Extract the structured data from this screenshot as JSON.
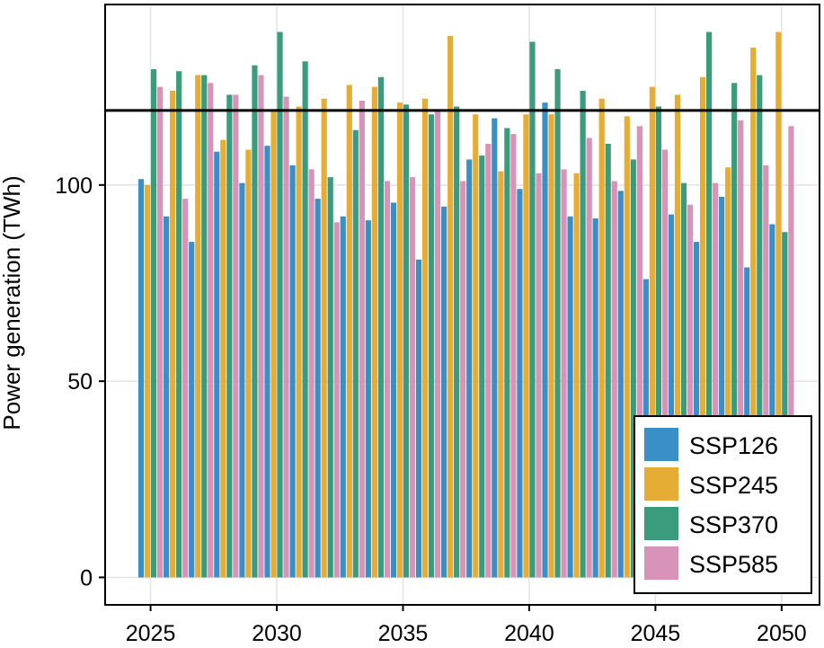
{
  "chart_data": {
    "type": "bar",
    "ylabel": "Power generation (TWh)",
    "x": [
      2025,
      2026,
      2027,
      2028,
      2029,
      2030,
      2031,
      2032,
      2033,
      2034,
      2035,
      2036,
      2037,
      2038,
      2039,
      2040,
      2041,
      2042,
      2043,
      2044,
      2045,
      2046,
      2047,
      2048,
      2049,
      2050
    ],
    "xticks": [
      "2025",
      "2030",
      "2035",
      "2040",
      "2045",
      "2050"
    ],
    "yticks": [
      "0",
      "50",
      "100"
    ],
    "ylim": [
      -7,
      146
    ],
    "grid": true,
    "legend_position": "bottom-right",
    "reference_line": 119,
    "series": [
      {
        "name": "SSP126",
        "color": "#3a8fc7",
        "values": [
          101.5,
          92,
          85.5,
          108.5,
          100.5,
          110,
          105,
          96.5,
          92,
          91,
          95.5,
          81,
          94.5,
          106.5,
          117,
          99,
          121,
          92,
          91.5,
          98.5,
          76,
          92.5,
          85.5,
          97,
          79,
          90
        ]
      },
      {
        "name": "SSP245",
        "color": "#e6ad35",
        "values": [
          100,
          124,
          128,
          111.5,
          109,
          119,
          120,
          122,
          125.5,
          125,
          121,
          122,
          138,
          118,
          103.5,
          118,
          118,
          103,
          122,
          117.5,
          125,
          123,
          127.5,
          104.5,
          135,
          139
        ]
      },
      {
        "name": "SSP370",
        "color": "#3a9b7d",
        "values": [
          129.5,
          129,
          128,
          123,
          130.5,
          139,
          131.5,
          102,
          114,
          127.5,
          120.5,
          118,
          120,
          107.5,
          114.5,
          136.5,
          129.5,
          124,
          110.5,
          106.5,
          120,
          100.5,
          139,
          126,
          128,
          88
        ]
      },
      {
        "name": "SSP585",
        "color": "#d794b8",
        "values": [
          125,
          96.5,
          126,
          123,
          128,
          122.5,
          104,
          90.5,
          121.5,
          101,
          102,
          119,
          101,
          110.5,
          113,
          103,
          104,
          112,
          101,
          115,
          109,
          95,
          100.5,
          116.5,
          105,
          115
        ]
      }
    ]
  }
}
